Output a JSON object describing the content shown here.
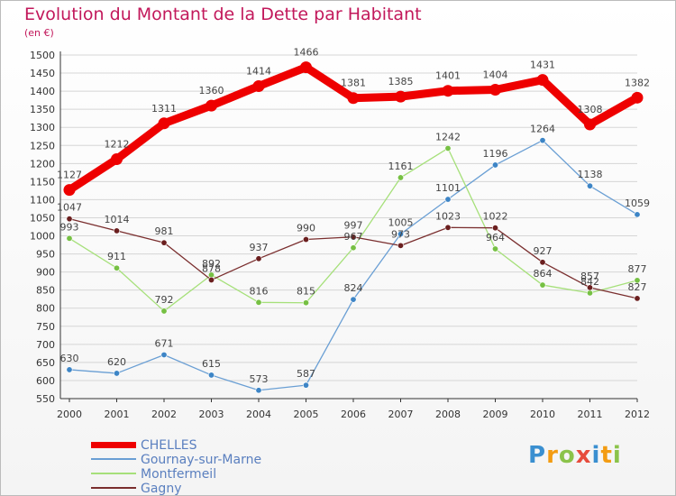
{
  "header": {
    "title": "Evolution du Montant de la Dette par Habitant",
    "subtitle": "(en €)"
  },
  "logo": {
    "letters": [
      "P",
      "r",
      "o",
      "x",
      "i",
      "t",
      "i"
    ],
    "colors": [
      "#3a8fd0",
      "#f39c12",
      "#8bc34a",
      "#e74c3c",
      "#3a8fd0",
      "#f39c12",
      "#8bc34a"
    ]
  },
  "chart_data": {
    "type": "line",
    "title": "Evolution du Montant de la Dette par Habitant",
    "subtitle": "(en €)",
    "xlabel": "",
    "ylabel": "",
    "x": [
      "2000",
      "2001",
      "2002",
      "2003",
      "2004",
      "2005",
      "2006",
      "2007",
      "2008",
      "2009",
      "2010",
      "2011",
      "2012"
    ],
    "yticks": [
      550,
      600,
      650,
      700,
      750,
      800,
      850,
      900,
      950,
      1000,
      1050,
      1100,
      1150,
      1200,
      1250,
      1300,
      1350,
      1400,
      1450,
      1500
    ],
    "ylim": [
      550,
      1500
    ],
    "legend_position": "bottom-left",
    "series": [
      {
        "name": "CHELLES",
        "color": "#ee0000",
        "marker_color": "#ee0000",
        "values": [
          1127,
          1212,
          1311,
          1360,
          1414,
          1466,
          1381,
          1385,
          1401,
          1404,
          1431,
          1308,
          1382
        ],
        "labels": [
          "1127",
          "1212",
          "1311",
          "1360",
          "1414",
          "1466",
          "1381",
          "1385",
          "1401",
          "1404",
          "1431",
          "1308",
          "1382"
        ]
      },
      {
        "name": "Gournay-sur-Marne",
        "color": "#6a9fd4",
        "marker_color": "#3d85c6",
        "values": [
          630,
          620,
          671,
          615,
          573,
          587,
          824,
          1005,
          1101,
          1196,
          1264,
          1138,
          1059
        ],
        "labels": [
          "630",
          "620",
          "671",
          "615",
          "573",
          "587",
          "824",
          "1005",
          "1101",
          "1196",
          "1264",
          "1138",
          "1059"
        ]
      },
      {
        "name": "Montfermeil",
        "color": "#a6e07a",
        "marker_color": "#76c043",
        "values": [
          993,
          911,
          792,
          892,
          816,
          815,
          967,
          1161,
          1242,
          964,
          864,
          842,
          877
        ],
        "labels": [
          "993",
          "911",
          "792",
          "892",
          "816",
          "815",
          "967",
          "1161",
          "1242",
          "964",
          "864",
          "842",
          "877"
        ]
      },
      {
        "name": "Gagny",
        "color": "#7a2e2e",
        "marker_color": "#6b1f1f",
        "values": [
          1047,
          1014,
          981,
          878,
          937,
          990,
          997,
          973,
          1023,
          1022,
          927,
          857,
          827
        ],
        "labels": [
          "1047",
          "1014",
          "981",
          "878",
          "937",
          "990",
          "997",
          "973",
          "1023",
          "1022",
          "927",
          "857",
          "827"
        ]
      }
    ]
  }
}
